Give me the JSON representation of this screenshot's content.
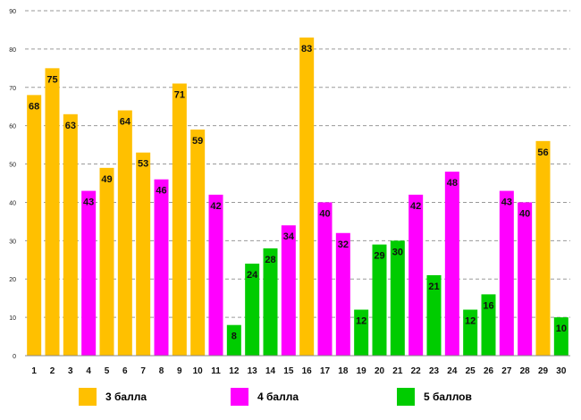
{
  "chart_data": {
    "type": "bar",
    "title": "",
    "xlabel": "",
    "ylabel": "",
    "ylim": [
      0,
      90
    ],
    "yticks": [
      0,
      10,
      20,
      30,
      40,
      50,
      60,
      70,
      80,
      90
    ],
    "grid": true,
    "categories": [
      "1",
      "2",
      "3",
      "4",
      "5",
      "6",
      "7",
      "8",
      "9",
      "10",
      "11",
      "12",
      "13",
      "14",
      "15",
      "16",
      "17",
      "18",
      "19",
      "20",
      "21",
      "22",
      "23",
      "24",
      "25",
      "26",
      "27",
      "28",
      "29",
      "30"
    ],
    "values": [
      68,
      75,
      63,
      43,
      49,
      64,
      53,
      46,
      71,
      59,
      42,
      8,
      24,
      28,
      34,
      83,
      40,
      32,
      12,
      29,
      30,
      42,
      21,
      48,
      12,
      16,
      43,
      40,
      56,
      10
    ],
    "groups": [
      "3",
      "3",
      "3",
      "4",
      "3",
      "3",
      "3",
      "4",
      "3",
      "3",
      "4",
      "5",
      "5",
      "5",
      "4",
      "3",
      "4",
      "4",
      "5",
      "5",
      "5",
      "4",
      "5",
      "4",
      "5",
      "5",
      "4",
      "4",
      "3",
      "5"
    ],
    "legend": [
      {
        "key": "3",
        "label": "3 балла",
        "color": "#FFC000"
      },
      {
        "key": "4",
        "label": "4 балла",
        "color": "#FF00FF"
      },
      {
        "key": "5",
        "label": "5 баллов",
        "color": "#00CC00"
      }
    ],
    "legend_position": "bottom"
  }
}
